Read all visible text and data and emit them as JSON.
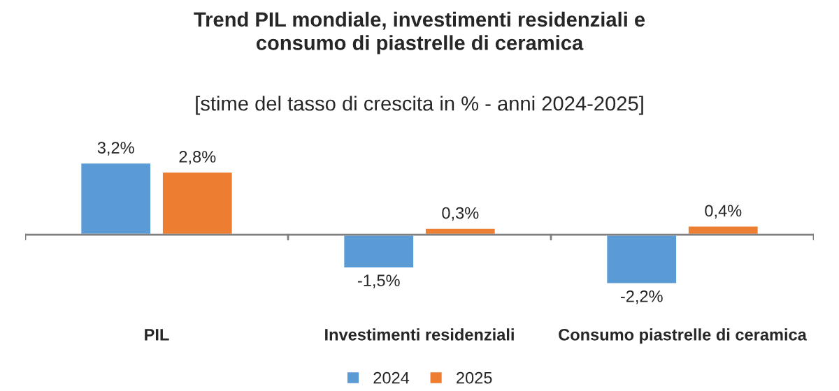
{
  "chart_data": {
    "type": "bar",
    "title": "Trend PIL mondiale, investimenti residenziali e\nconsumo di piastrelle di ceramica",
    "subtitle": "[stime del tasso di crescita in % - anni 2024-2025]",
    "categories": [
      "PIL",
      "Investimenti residenziali",
      "Consumo piastrelle di ceramica"
    ],
    "series": [
      {
        "name": "2024",
        "color": "#5b9bd5",
        "values": [
          3.2,
          -1.5,
          -2.2
        ],
        "value_labels": [
          "3,2%",
          "-1,5%",
          "-2,2%"
        ]
      },
      {
        "name": "2025",
        "color": "#ed7d31",
        "values": [
          2.8,
          0.3,
          0.4
        ],
        "value_labels": [
          "2,8%",
          "0,3%",
          "0,4%"
        ]
      }
    ],
    "legend": "bottom",
    "grid": false
  }
}
